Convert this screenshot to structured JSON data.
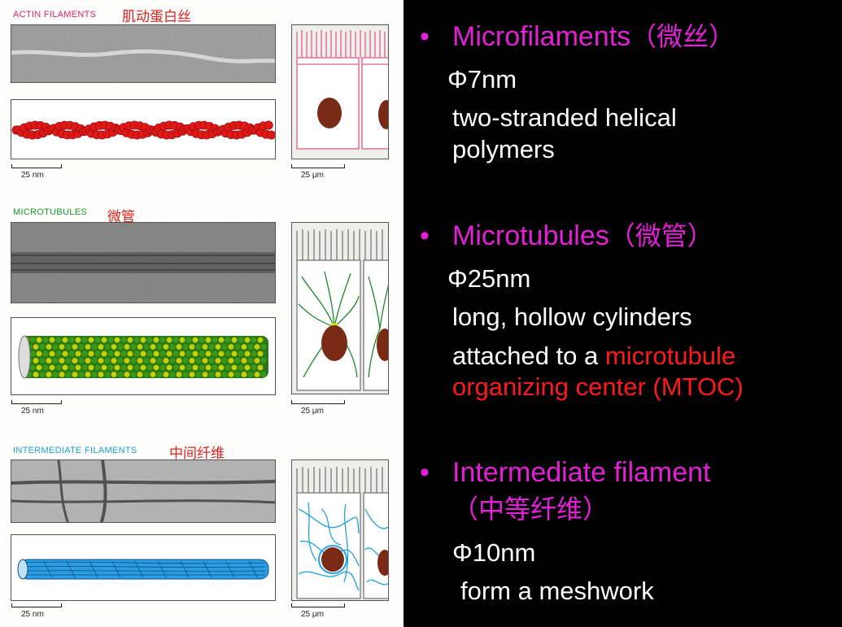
{
  "figure": {
    "actin": {
      "label": "ACTIN FILAMENTS",
      "label_cn": "肌动蛋白丝",
      "label_color": "#e0206a",
      "scale_left": "25 nm",
      "scale_right": "25 μm",
      "model_color": "#e01818"
    },
    "microtubules": {
      "label": "MICROTUBULES",
      "label_cn": "微管",
      "label_color": "#1a9a2a",
      "scale_left": "25 nm",
      "scale_right": "25 μm",
      "model_color": "#c8d000"
    },
    "intermediate": {
      "label": "INTERMEDIATE FILAMENTS",
      "label_cn": "中间纤维",
      "label_color": "#1aa0d8",
      "scale_left": "25 nm",
      "scale_right": "25 μm",
      "model_color": "#2a9ee0"
    }
  },
  "notes": {
    "b1": {
      "bullet": "•",
      "title": "Microfilaments",
      "title_cn": "（微丝）",
      "diameter": "Φ7nm",
      "line1": "two-stranded helical",
      "line2": "polymers"
    },
    "b2": {
      "bullet": "•",
      "title": "Microtubules",
      "title_cn": "（微管）",
      "diameter": "Φ25nm",
      "line1": "long, hollow cylinders",
      "line2_pre": "attached to a ",
      "line2_red": "microtubule",
      "line3": "organizing center (MTOC)"
    },
    "b3": {
      "bullet": "•",
      "title": "Intermediate filament",
      "title_cn": "（中等纤维）",
      "diameter": "Φ10nm",
      "line1": "form a meshwork"
    }
  }
}
